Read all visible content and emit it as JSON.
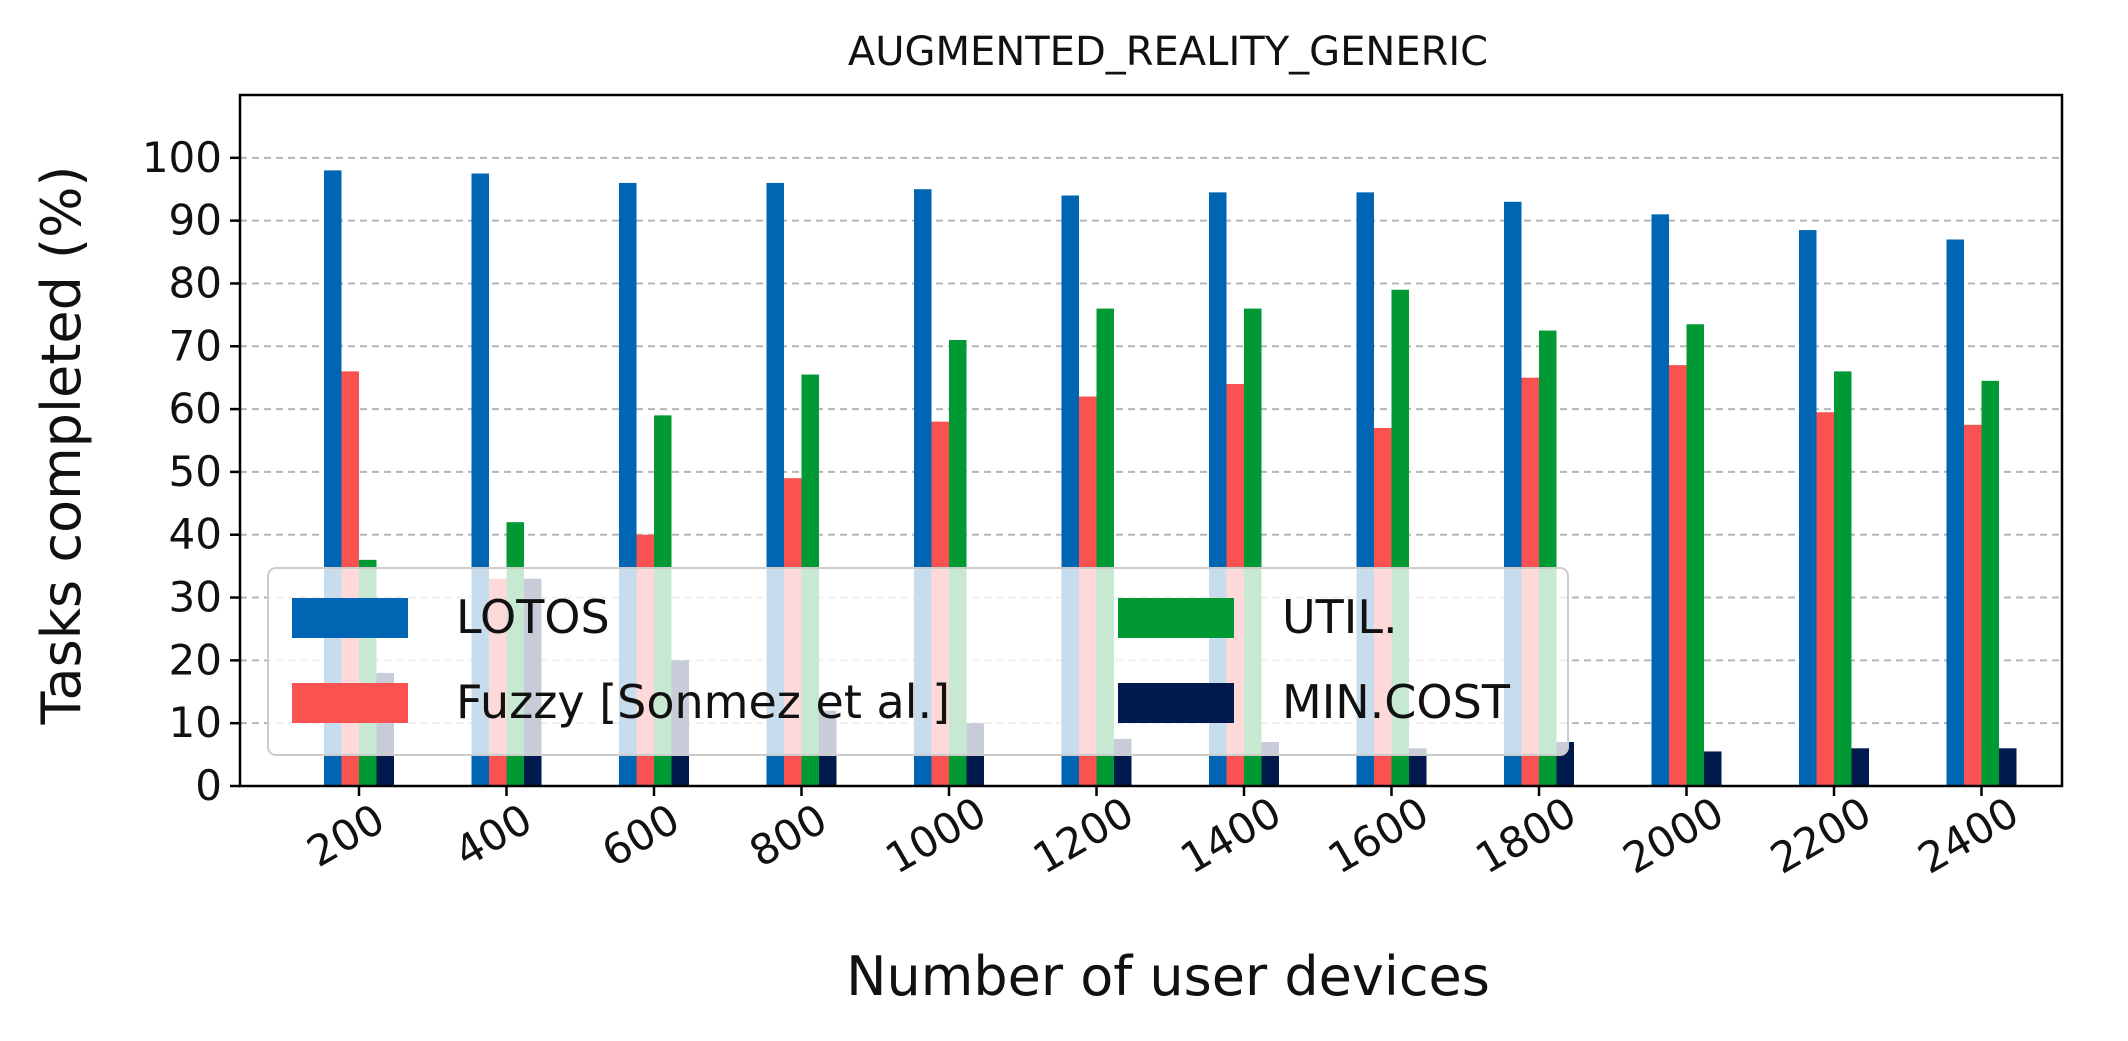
{
  "chart_data": {
    "type": "bar",
    "title": "AUGMENTED_REALITY_GENERIC",
    "xlabel": "Number of user devices",
    "ylabel": "Tasks completed (%)",
    "categories": [
      "200",
      "400",
      "600",
      "800",
      "1000",
      "1200",
      "1400",
      "1600",
      "1800",
      "2000",
      "2200",
      "2400"
    ],
    "ylim": [
      0,
      110
    ],
    "yticks": [
      "0",
      "10",
      "20",
      "30",
      "40",
      "50",
      "60",
      "70",
      "80",
      "90",
      "100"
    ],
    "grid": "y-dashed",
    "legend_placement": "lower-left",
    "legend_columns": 2,
    "series": [
      {
        "name": "LOTOS",
        "color": "#0066b3",
        "values": [
          98,
          97.5,
          96,
          96,
          95,
          94,
          94.5,
          94.5,
          93,
          91,
          88.5,
          87
        ]
      },
      {
        "name": "Fuzzy [Sonmez et al.]",
        "color": "#fa5151",
        "values": [
          66,
          33,
          40,
          49,
          58,
          62,
          64,
          57,
          65,
          67,
          59.5,
          57.5
        ]
      },
      {
        "name": "UTIL.",
        "color": "#009933",
        "values": [
          36,
          42,
          59,
          65.5,
          71,
          76,
          76,
          79,
          72.5,
          73.5,
          66,
          64.5
        ]
      },
      {
        "name": "MIN.COST",
        "color": "#001a4d",
        "values": [
          18,
          33,
          20,
          12,
          10,
          7.5,
          7,
          6,
          7,
          5.5,
          6,
          6
        ]
      }
    ]
  }
}
